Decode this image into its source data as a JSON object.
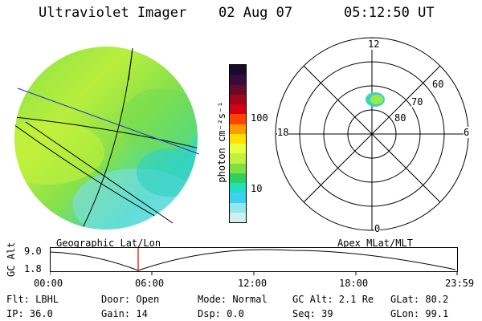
{
  "header": {
    "instrument": "Ultraviolet Imager",
    "date": "02 Aug 07",
    "time": "05:12:50 UT"
  },
  "colorbar": {
    "unit_label": "photon cm⁻²s⁻¹",
    "ticks": [
      "100",
      "10"
    ],
    "colors": [
      "#1a0a2e",
      "#3a0a3a",
      "#6a0a2a",
      "#a0081a",
      "#d60014",
      "#ff4400",
      "#ff9a00",
      "#ffe000",
      "#e8ff40",
      "#c0f040",
      "#80e040",
      "#30d060",
      "#20e0c0",
      "#40d0f0",
      "#90e8f0",
      "#d0f0f0"
    ]
  },
  "left_map": {
    "title": "Geographic Lat/Lon"
  },
  "right_map": {
    "title": "Apex MLat/MLT",
    "mlt_labels": {
      "top": "12",
      "bottom": "0",
      "left": "18",
      "right": "6"
    },
    "lat_labels": [
      "60",
      "70",
      "80"
    ]
  },
  "timeline": {
    "ylabel": "GC Alt",
    "ymax": "9.0",
    "ymin": "1.8",
    "ticks": [
      "00:00",
      "06:00",
      "12:00",
      "18:00",
      "23:59"
    ]
  },
  "footer": {
    "flt": "Flt: LBHL",
    "ip": "IP: 36.0",
    "door": "Door: Open",
    "gain": "Gain: 14",
    "mode": "Mode: Normal",
    "dsp": "Dsp:    0.0",
    "gcalt": "GC Alt: 2.1 Re",
    "seq": "Seq: 39",
    "glat": "GLat:  80.2",
    "glon": "GLon:  99.1"
  }
}
